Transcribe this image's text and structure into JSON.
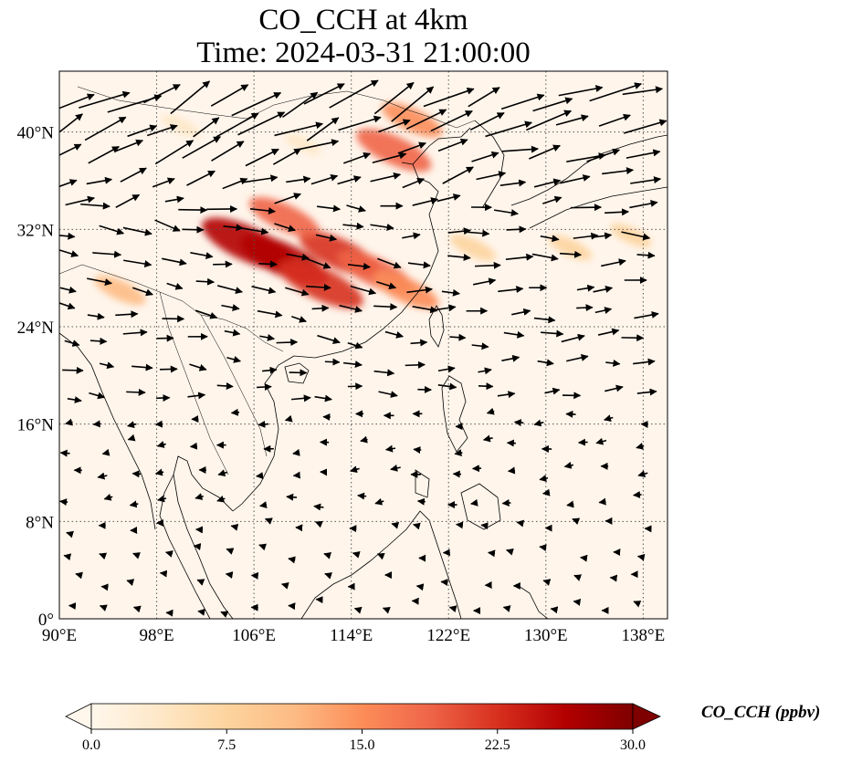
{
  "title": {
    "line1": "CO_CCH at 4km",
    "line2": "Time: 2024-03-31 21:00:00"
  },
  "map": {
    "projection": "PlateCarree",
    "lon_range": [
      90,
      140
    ],
    "lat_range": [
      0,
      45
    ],
    "gridlines": "dotted",
    "lon_ticks": [
      {
        "value": 90,
        "label": "90°E"
      },
      {
        "value": 98,
        "label": "98°E"
      },
      {
        "value": 106,
        "label": "106°E"
      },
      {
        "value": 114,
        "label": "114°E"
      },
      {
        "value": 122,
        "label": "122°E"
      },
      {
        "value": 130,
        "label": "130°E"
      },
      {
        "value": 138,
        "label": "138°E"
      }
    ],
    "lat_ticks": [
      {
        "value": 0,
        "label": "0°"
      },
      {
        "value": 8,
        "label": "8°N"
      },
      {
        "value": 16,
        "label": "16°N"
      },
      {
        "value": 24,
        "label": "24°N"
      },
      {
        "value": 32,
        "label": "32°N"
      },
      {
        "value": 40,
        "label": "40°N"
      }
    ],
    "background_color": "#fff5eb",
    "wind_arrow_color": "#000000"
  },
  "colorbar": {
    "label": "CO_CCH (ppbv)",
    "colormap": "OrRd",
    "range": [
      0,
      30
    ],
    "extend": "both",
    "ticks": [
      {
        "value": 0,
        "label": "0.0"
      },
      {
        "value": 7.5,
        "label": "7.5"
      },
      {
        "value": 15,
        "label": "15.0"
      },
      {
        "value": 22.5,
        "label": "22.5"
      },
      {
        "value": 30,
        "label": "30.0"
      }
    ],
    "colors": [
      "#fff7ec",
      "#fee8c8",
      "#fdd49e",
      "#fdbb84",
      "#fc8d59",
      "#ef6548",
      "#d7301f",
      "#b30000",
      "#7f0000"
    ]
  },
  "plumes": [
    {
      "lon": 105.5,
      "lat": 30.8,
      "value": 27
    },
    {
      "lon": 108.5,
      "lat": 29.5,
      "value": 25
    },
    {
      "lon": 111.5,
      "lat": 27.5,
      "value": 24
    },
    {
      "lon": 113,
      "lat": 30,
      "value": 22
    },
    {
      "lon": 116,
      "lat": 28.5,
      "value": 20
    },
    {
      "lon": 118.5,
      "lat": 27,
      "value": 16
    },
    {
      "lon": 108.5,
      "lat": 33,
      "value": 18
    },
    {
      "lon": 117.5,
      "lat": 38.5,
      "value": 20
    },
    {
      "lon": 119,
      "lat": 41,
      "value": 14
    },
    {
      "lon": 95,
      "lat": 27,
      "value": 10
    },
    {
      "lon": 124,
      "lat": 30.5,
      "value": 8
    },
    {
      "lon": 132,
      "lat": 30.5,
      "value": 7
    },
    {
      "lon": 137,
      "lat": 31.5,
      "value": 6
    },
    {
      "lon": 100,
      "lat": 40.5,
      "value": 5
    },
    {
      "lon": 110,
      "lat": 39,
      "value": 4
    }
  ]
}
